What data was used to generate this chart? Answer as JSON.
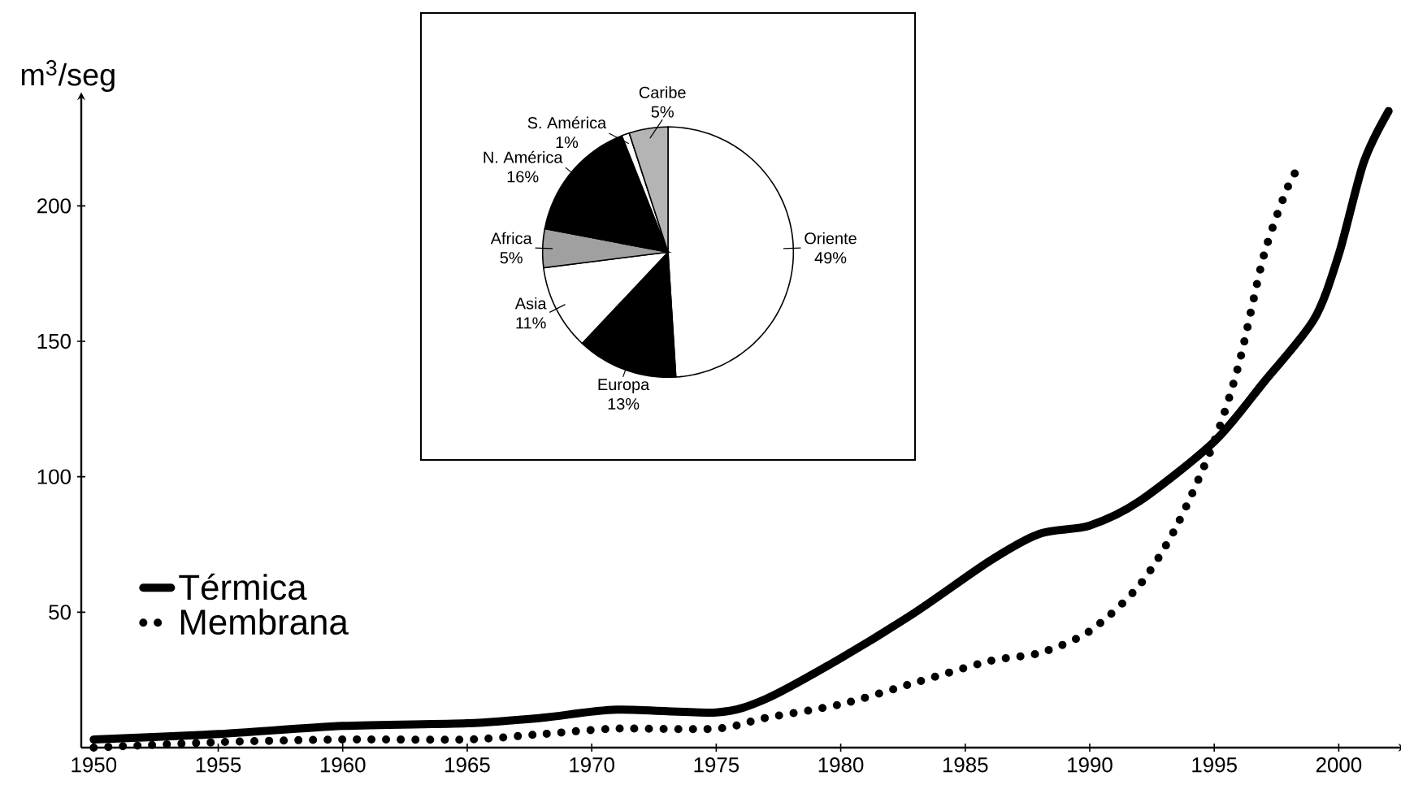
{
  "chart_data": [
    {
      "type": "line",
      "ylabel": "m$^{3}$/seg",
      "xlim": [
        1949.5,
        2002.5
      ],
      "ylim": [
        0,
        240
      ],
      "xticks": [
        1950,
        1955,
        1960,
        1965,
        1970,
        1975,
        1980,
        1985,
        1990,
        1995,
        2000
      ],
      "yticks": [
        50,
        100,
        150,
        200
      ],
      "legend": "bottom left",
      "marker": "none",
      "series": [
        {
          "name": "Térmica",
          "color": "#000000",
          "line_style": "solid",
          "x": [
            1950,
            1955,
            1960,
            1965,
            1968,
            1971,
            1975,
            1977,
            1980,
            1983,
            1986,
            1988,
            1990,
            1992,
            1995,
            1997,
            1999,
            2000,
            2001,
            2002
          ],
          "values": [
            3,
            5,
            8,
            9,
            11,
            14,
            13,
            18,
            33,
            50,
            69,
            79,
            82,
            91,
            113,
            135,
            158,
            182,
            216,
            235
          ]
        },
        {
          "name": "Membrana",
          "color": "#000000",
          "line_style": "dotted",
          "x": [
            1950,
            1955,
            1960,
            1965,
            1968,
            1971,
            1975,
            1977,
            1980,
            1983,
            1986,
            1988,
            1990,
            1992,
            1993.5,
            1995,
            1996,
            1997,
            1998,
            1998.5
          ],
          "values": [
            0,
            2,
            3,
            3,
            5,
            7,
            7,
            11,
            16,
            24,
            32,
            35,
            43,
            60,
            82,
            113,
            142,
            182,
            208,
            215
          ]
        }
      ]
    },
    {
      "type": "pie",
      "categories": [
        "Oriente",
        "Europa",
        "Asia",
        "Africa",
        "N. América",
        "S. América",
        "Caribe"
      ],
      "values": [
        49,
        13,
        11,
        5,
        16,
        1,
        5
      ],
      "value_labels": [
        "49%",
        "13%",
        "11%",
        "5%",
        "16%",
        "1%",
        "5%"
      ],
      "colors": [
        "#ffffff",
        "#000000",
        "#ffffff",
        "#a0a0a0",
        "#000000",
        "#ffffff",
        "#b4b4b4"
      ]
    }
  ]
}
